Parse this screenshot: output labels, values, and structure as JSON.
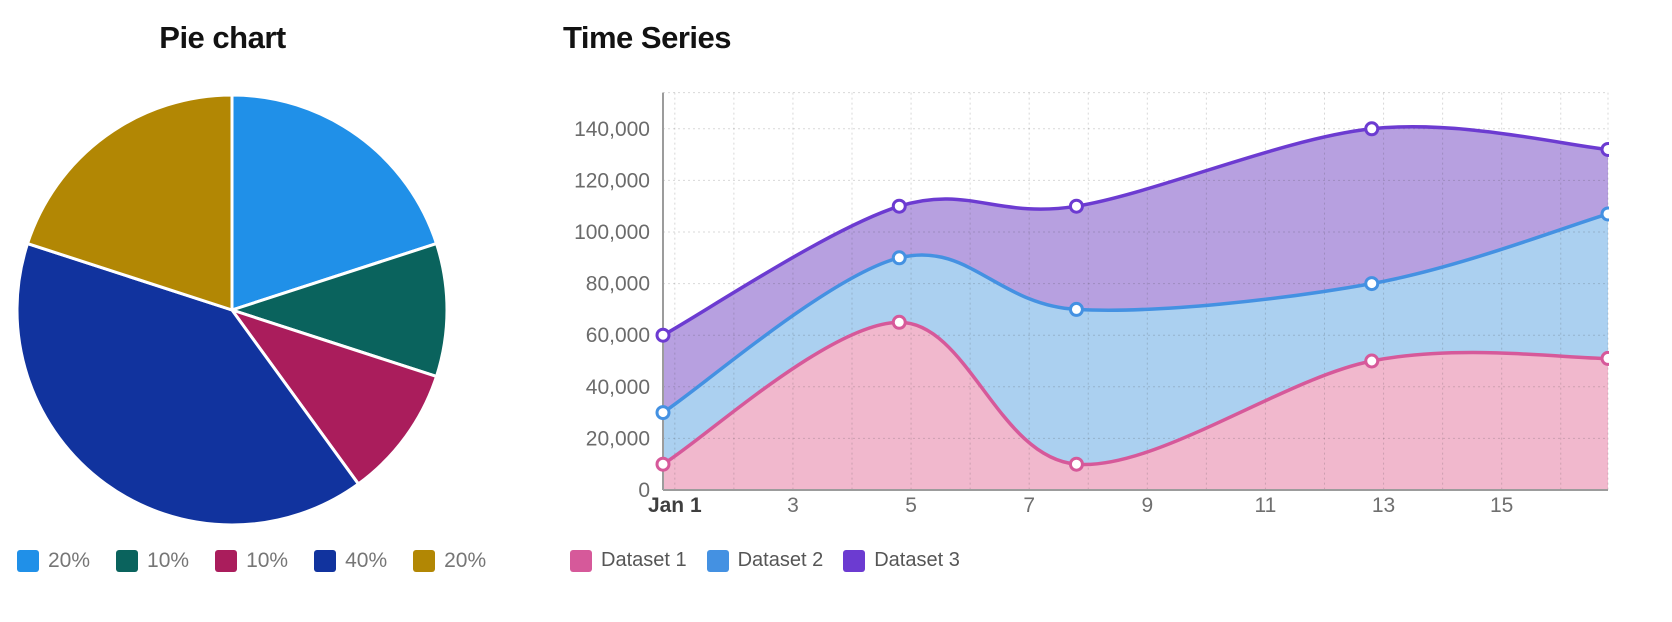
{
  "page": {
    "background": "#ffffff"
  },
  "chart_data": [
    {
      "type": "pie",
      "title": "Pie chart",
      "labels": [
        "20%",
        "10%",
        "10%",
        "40%",
        "20%"
      ],
      "values": [
        20,
        10,
        10,
        40,
        20
      ],
      "colors": [
        "#2090e8",
        "#0a635d",
        "#aa1d5c",
        "#11339e",
        "#b28704"
      ],
      "start_angle_deg_from_top": 0,
      "direction": "clockwise",
      "slice_border_color": "#ffffff",
      "legend_position": "bottom-left"
    },
    {
      "type": "area",
      "title": "Time Series",
      "x": [
        "Jan 1",
        "Jan 5",
        "Jan 8",
        "Jan 13",
        "Jan 17"
      ],
      "x_days": [
        1,
        5,
        8,
        13,
        17
      ],
      "series": [
        {
          "name": "Dataset 1",
          "values": [
            10000,
            65000,
            10000,
            50000,
            51000
          ],
          "line_color": "#d6599a",
          "fill_color": "#f1b8cd"
        },
        {
          "name": "Dataset 2",
          "values": [
            30000,
            90000,
            70000,
            80000,
            107000
          ],
          "line_color": "#4491e2",
          "fill_color": "#abd0f0"
        },
        {
          "name": "Dataset 3",
          "values": [
            60000,
            110000,
            110000,
            140000,
            132000
          ],
          "line_color": "#6c3bd1",
          "fill_color": "#b7a0e0"
        }
      ],
      "x_tick_labels": [
        "Jan 1",
        "3",
        "5",
        "7",
        "9",
        "11",
        "13",
        "15"
      ],
      "x_tick_days": [
        1,
        3,
        5,
        7,
        9,
        11,
        13,
        15
      ],
      "y_ticks": [
        0,
        20000,
        40000,
        60000,
        80000,
        100000,
        120000,
        140000
      ],
      "y_tick_labels": [
        "0",
        "20,000",
        "40,000",
        "60,000",
        "80,000",
        "100,000",
        "120,000",
        "140,000"
      ],
      "xlim_days": [
        1,
        17
      ],
      "ylim": [
        0,
        154000
      ],
      "grid": true,
      "smooth": true,
      "point_style": "circle-white-fill",
      "legend_position": "bottom-left"
    }
  ]
}
